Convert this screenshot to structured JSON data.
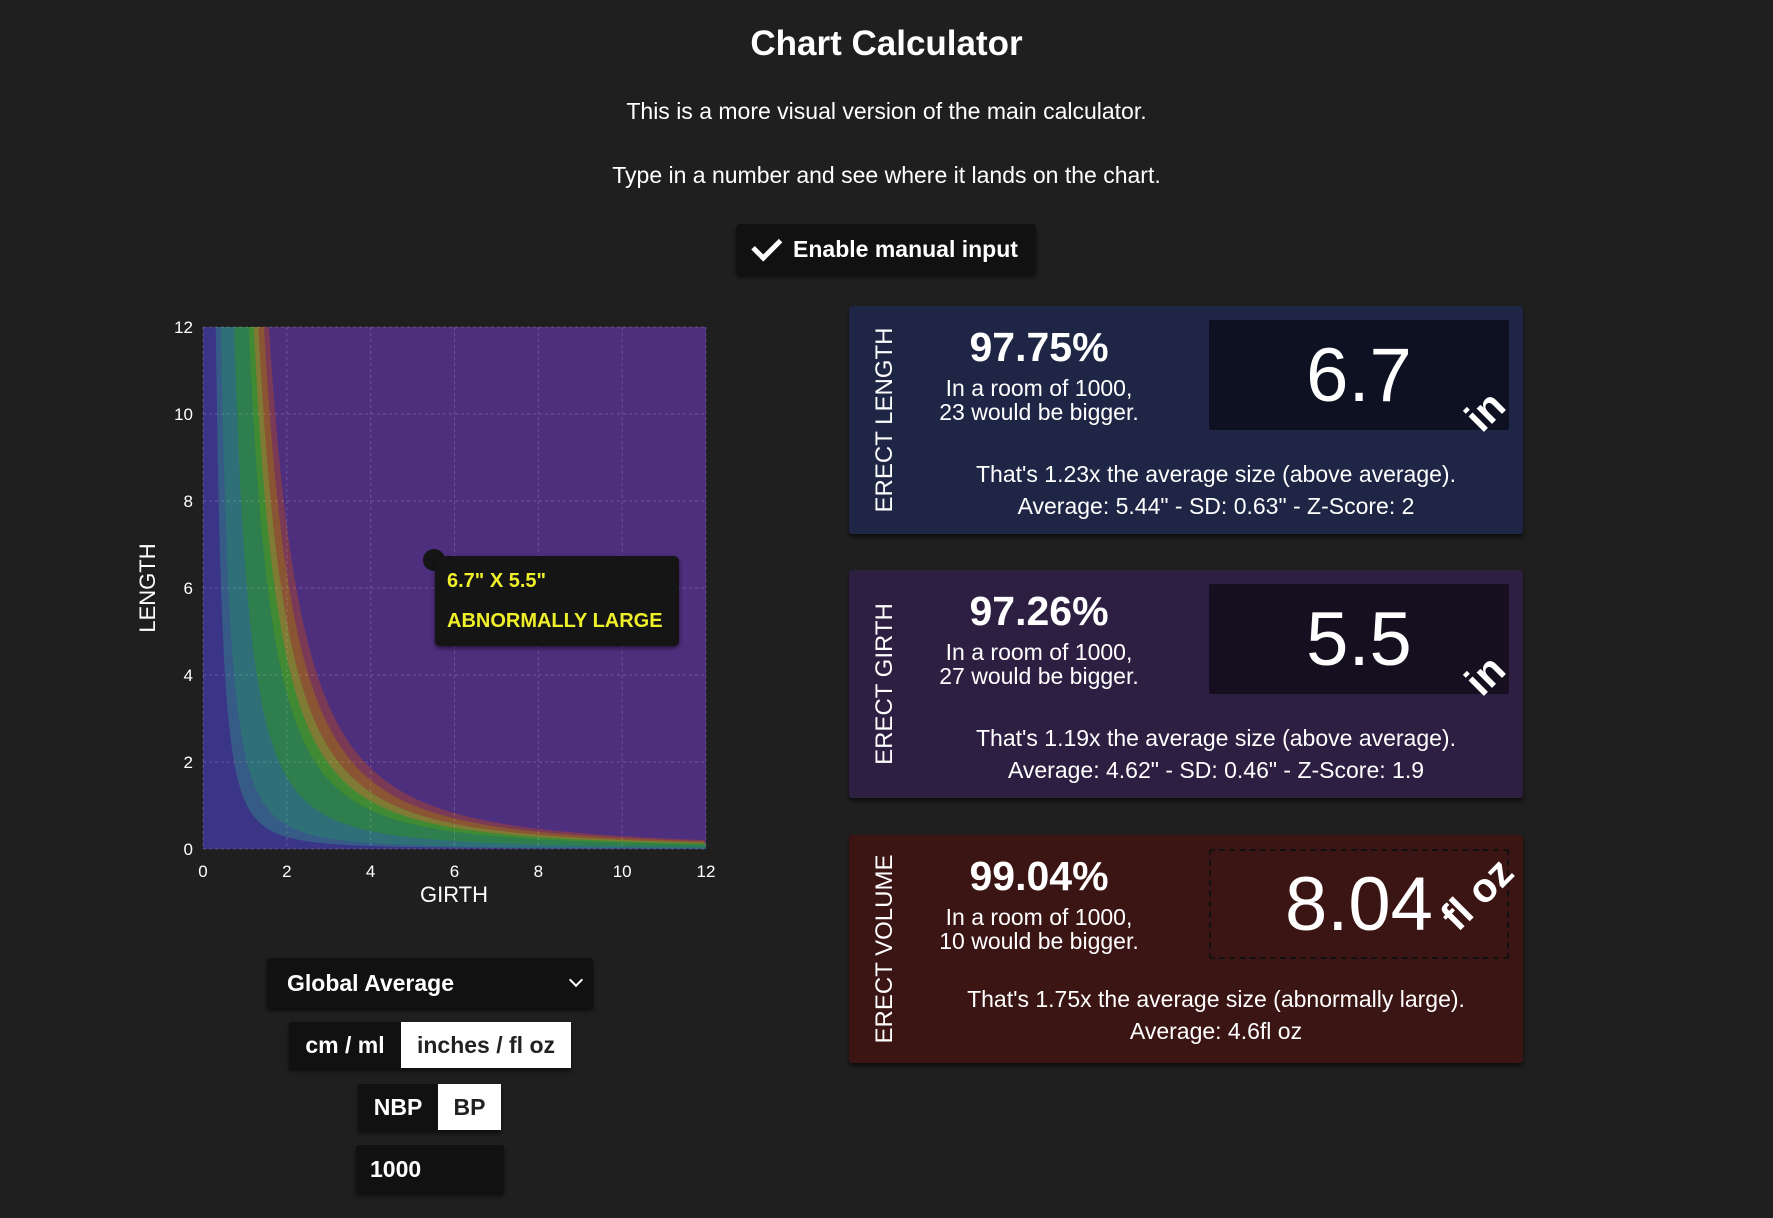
{
  "page": {
    "title": "Chart Calculator",
    "subtitle1": "This is a more visual version of the main calculator.",
    "subtitle2": "Type in a number and see where it lands on the chart."
  },
  "manual_input": {
    "label": "Enable manual input",
    "checked": true
  },
  "chart_data": {
    "type": "area",
    "xlabel": "GIRTH",
    "ylabel": "LENGTH",
    "xlim": [
      0,
      12
    ],
    "ylim": [
      0,
      12
    ],
    "xticks": [
      0,
      2,
      4,
      6,
      8,
      10,
      12
    ],
    "yticks": [
      0,
      2,
      4,
      6,
      8,
      10,
      12
    ],
    "grid": true,
    "background_color": "#4e2f7e",
    "bands": [
      {
        "name": "band-1",
        "volume_threshold": 0.5,
        "color": "#3a3586"
      },
      {
        "name": "band-2",
        "volume_threshold": 1.0,
        "color": "#355b86"
      },
      {
        "name": "band-3",
        "volume_threshold": 3.0,
        "color": "#2e6f78"
      },
      {
        "name": "band-4",
        "volume_threshold": 6.5,
        "color": "#2f7e4e"
      },
      {
        "name": "band-5",
        "volume_threshold": 8.0,
        "color": "#3f8a33"
      },
      {
        "name": "band-6",
        "volume_threshold": 9.5,
        "color": "#7f7a34"
      },
      {
        "name": "band-7",
        "volume_threshold": 11.5,
        "color": "#8a5533"
      },
      {
        "name": "band-8",
        "volume_threshold": 13.5,
        "color": "#7a3a55"
      }
    ],
    "point": {
      "x": 5.5,
      "y": 6.7
    },
    "tooltip": {
      "line1": "6.7\" X 5.5\"",
      "line2": "ABNORMALLY LARGE"
    }
  },
  "cards": [
    {
      "label": "ERECT LENGTH",
      "percent": "97.75%",
      "room_line1": "In a room of 1000,",
      "room_line2": "23 would be bigger.",
      "value": "6.7",
      "unit": "in",
      "desc_line1": "That's 1.23x the average size (above average).",
      "desc_line2": "Average: 5.44\" - SD: 0.63\" - Z-Score: 2",
      "bg": "#1e2545",
      "valbox_bg": "#0d1122"
    },
    {
      "label": "ERECT GIRTH",
      "percent": "97.26%",
      "room_line1": "In a room of 1000,",
      "room_line2": "27 would be bigger.",
      "value": "5.5",
      "unit": "in",
      "desc_line1": "That's 1.19x the average size (above average).",
      "desc_line2": "Average: 4.62\" - SD: 0.46\" - Z-Score: 1.9",
      "bg": "#2c1f42",
      "valbox_bg": "#150f20"
    },
    {
      "label": "ERECT VOLUME",
      "percent": "99.04%",
      "room_line1": "In a room of 1000,",
      "room_line2": "10 would be bigger.",
      "value": "8.04",
      "unit": "fl oz",
      "desc_line1": "That's 1.75x the average size (abnormally large).",
      "desc_line2": "Average: 4.6fl oz",
      "bg": "#3b1414",
      "valbox_bg": "#3b1414"
    }
  ],
  "controls": {
    "population_select": "Global Average",
    "units": {
      "option1": "cm / ml",
      "option2": "inches / fl oz",
      "selected": "inches / fl oz"
    },
    "mode": {
      "option1": "NBP",
      "option2": "BP",
      "selected": "BP"
    },
    "room_size": "1000"
  }
}
